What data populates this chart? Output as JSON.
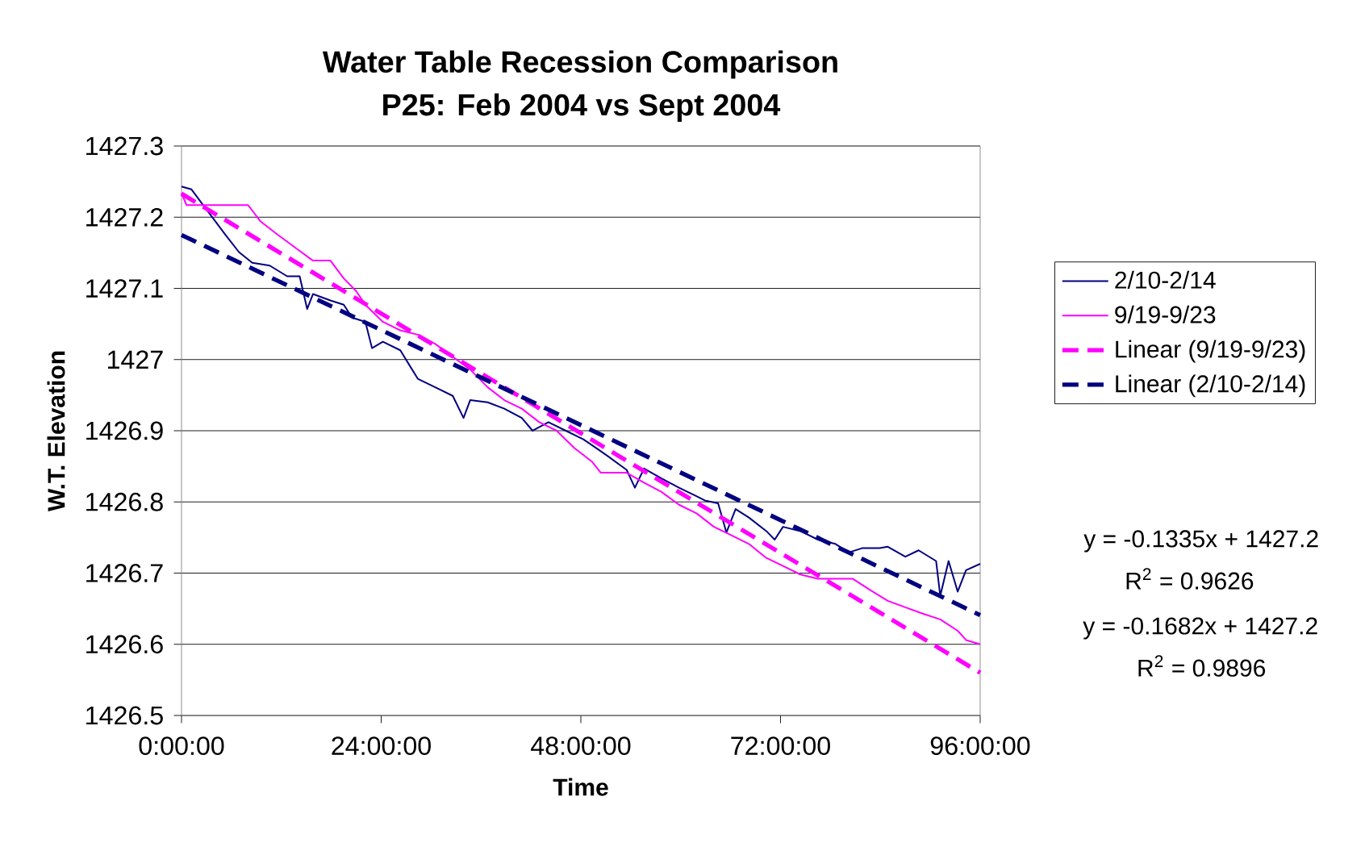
{
  "chart_data": {
    "type": "line",
    "title": "Water Table Recession Comparison\nP25: Feb 2004 vs Sept 2004",
    "xlabel": "Time",
    "ylabel": "W.T. Elevation",
    "xlim": [
      0,
      96
    ],
    "xticks": [
      {
        "value": 0,
        "label": "0:00:00"
      },
      {
        "value": 24,
        "label": "24:00:00"
      },
      {
        "value": 48,
        "label": "48:00:00"
      },
      {
        "value": 72,
        "label": "72:00:00"
      },
      {
        "value": 96,
        "label": "96:00:00"
      }
    ],
    "ylim": [
      1426.5,
      1427.3
    ],
    "yticks": [
      1426.5,
      1426.6,
      1426.7,
      1426.8,
      1426.9,
      1427,
      1427.1,
      1427.2,
      1427.3
    ],
    "grid": "y",
    "legend": "right",
    "marker": "none",
    "series": [
      {
        "name": "2/10-2/14",
        "color": "#000080",
        "line_style": "solid",
        "x": [
          0,
          1.2,
          3.3,
          5.3,
          6.9,
          8.5,
          10.6,
          12.7,
          14.2,
          15.1,
          15.8,
          17.9,
          19.5,
          20.5,
          22.1,
          22.9,
          24.2,
          26.3,
          28.4,
          30.5,
          32.6,
          33.9,
          34.7,
          36.8,
          38.8,
          40.9,
          42.2,
          44.1,
          46.2,
          48.3,
          49.8,
          51.4,
          53.5,
          54.5,
          55.6,
          57.7,
          59.8,
          61.9,
          62.9,
          64.5,
          65.5,
          66.6,
          68.2,
          70.3,
          71.3,
          72.3,
          74.4,
          76.5,
          78.6,
          80.2,
          81.8,
          83.9,
          84.9,
          87.0,
          88.6,
          90.7,
          91.2,
          92.2,
          93.3,
          94.3,
          96
        ],
        "values": [
          1427.243,
          1427.239,
          1427.206,
          1427.175,
          1427.151,
          1427.136,
          1427.132,
          1427.117,
          1427.117,
          1427.071,
          1427.092,
          1427.083,
          1427.077,
          1427.059,
          1427.053,
          1427.016,
          1427.025,
          1427.013,
          1426.973,
          1426.961,
          1426.949,
          1426.918,
          1426.943,
          1426.94,
          1426.931,
          1426.918,
          1426.9,
          1426.912,
          1426.9,
          1426.888,
          1426.876,
          1426.863,
          1426.845,
          1426.82,
          1426.847,
          1426.833,
          1426.82,
          1426.808,
          1426.802,
          1426.798,
          1426.757,
          1426.79,
          1426.778,
          1426.759,
          1426.747,
          1426.765,
          1426.759,
          1426.747,
          1426.741,
          1426.729,
          1426.735,
          1426.735,
          1426.737,
          1426.723,
          1426.732,
          1426.717,
          1426.668,
          1426.717,
          1426.674,
          1426.704,
          1426.713
        ]
      },
      {
        "name": "9/19-9/23",
        "color": "#ff00ff",
        "line_style": "solid",
        "x": [
          0,
          0.6,
          8.0,
          9.5,
          11.6,
          13.7,
          15.8,
          17.9,
          19.5,
          21.0,
          22.1,
          24.2,
          26.3,
          28.4,
          30.5,
          32.6,
          34.7,
          36.8,
          38.8,
          40.9,
          43.0,
          45.1,
          47.2,
          49.3,
          50.4,
          53.5,
          55.6,
          57.7,
          59.8,
          61.9,
          64.0,
          66.1,
          68.2,
          70.2,
          72.3,
          74.4,
          76.5,
          80.7,
          82.8,
          84.9,
          87.0,
          89.1,
          91.2,
          93.3,
          94.3,
          96
        ],
        "values": [
          1427.234,
          1427.217,
          1427.217,
          1427.194,
          1427.175,
          1427.157,
          1427.139,
          1427.139,
          1427.114,
          1427.096,
          1427.077,
          1427.053,
          1427.041,
          1427.035,
          1427.022,
          1427.004,
          1426.986,
          1426.961,
          1426.943,
          1426.931,
          1426.912,
          1426.9,
          1426.876,
          1426.857,
          1426.841,
          1426.841,
          1426.827,
          1426.814,
          1426.796,
          1426.784,
          1426.765,
          1426.753,
          1426.741,
          1426.722,
          1426.71,
          1426.698,
          1426.692,
          1426.692,
          1426.676,
          1426.661,
          1426.652,
          1426.643,
          1426.635,
          1426.619,
          1426.606,
          1426.6
        ]
      },
      {
        "name": "Linear (9/19-9/23)",
        "color": "#ff00ff",
        "line_style": "dashed",
        "x": [
          0,
          96
        ],
        "values": [
          1427.233,
          1426.56
        ]
      },
      {
        "name": "Linear (2/10-2/14)",
        "color": "#000080",
        "line_style": "dashed",
        "x": [
          0,
          96
        ],
        "values": [
          1427.175,
          1426.641
        ]
      }
    ],
    "annotations": [
      "y = -0.1335x + 1427.2",
      "R$^{2}$ = 0.9626",
      "y = -0.1682x + 1427.2",
      "R$^{2}$ = 0.9896"
    ]
  }
}
